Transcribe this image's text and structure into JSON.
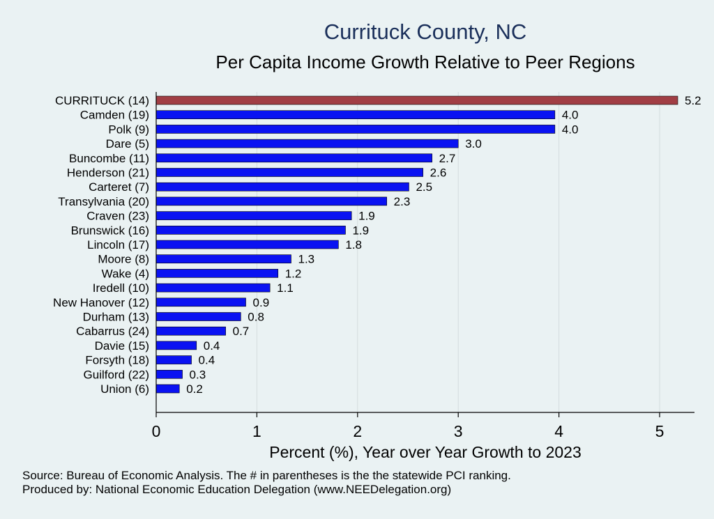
{
  "chart_data": {
    "type": "bar",
    "orientation": "horizontal",
    "title": "Currituck County, NC",
    "subtitle": "Per Capita Income Growth Relative to Peer Regions",
    "xlabel": "Percent (%), Year over Year Growth to 2023",
    "ylabel": "",
    "xlim": [
      0,
      5.35
    ],
    "xticks": [
      "0",
      "1",
      "2",
      "3",
      "4",
      "5"
    ],
    "grid": "vertical",
    "categories": [
      "CURRITUCK (14)",
      "Camden (19)",
      "Polk  (9)",
      "Dare  (5)",
      "Buncombe (11)",
      "Henderson (21)",
      "Carteret  (7)",
      "Transylvania (20)",
      "Craven (23)",
      "Brunswick (16)",
      "Lincoln (17)",
      "Moore  (8)",
      "Wake  (4)",
      "Iredell (10)",
      "New Hanover (12)",
      "Durham (13)",
      "Cabarrus (24)",
      "Davie (15)",
      "Forsyth (18)",
      "Guilford (22)",
      "Union  (6)"
    ],
    "values": [
      5.18,
      3.96,
      3.96,
      3.0,
      2.74,
      2.65,
      2.51,
      2.29,
      1.94,
      1.88,
      1.81,
      1.34,
      1.21,
      1.13,
      0.89,
      0.84,
      0.69,
      0.4,
      0.35,
      0.26,
      0.23
    ],
    "value_labels": [
      "5.2",
      "4.0",
      "4.0",
      "3.0",
      "2.7",
      "2.6",
      "2.5",
      "2.3",
      "1.9",
      "1.9",
      "1.8",
      "1.3",
      "1.2",
      "1.1",
      "0.9",
      "0.8",
      "0.7",
      "0.4",
      "0.4",
      "0.3",
      "0.2"
    ],
    "highlight_index": 0,
    "colors": {
      "highlight": "#a13e44",
      "bar": "#0a12f2",
      "background": "#eaf2f3",
      "grid": "#d3dcde"
    }
  },
  "notes": {
    "source": "Source: Bureau of Economic Analysis. The # in parentheses is the the statewide PCI ranking.",
    "produced_by": "Produced by: National Economic Education Delegation (www.NEEDelegation.org)"
  }
}
